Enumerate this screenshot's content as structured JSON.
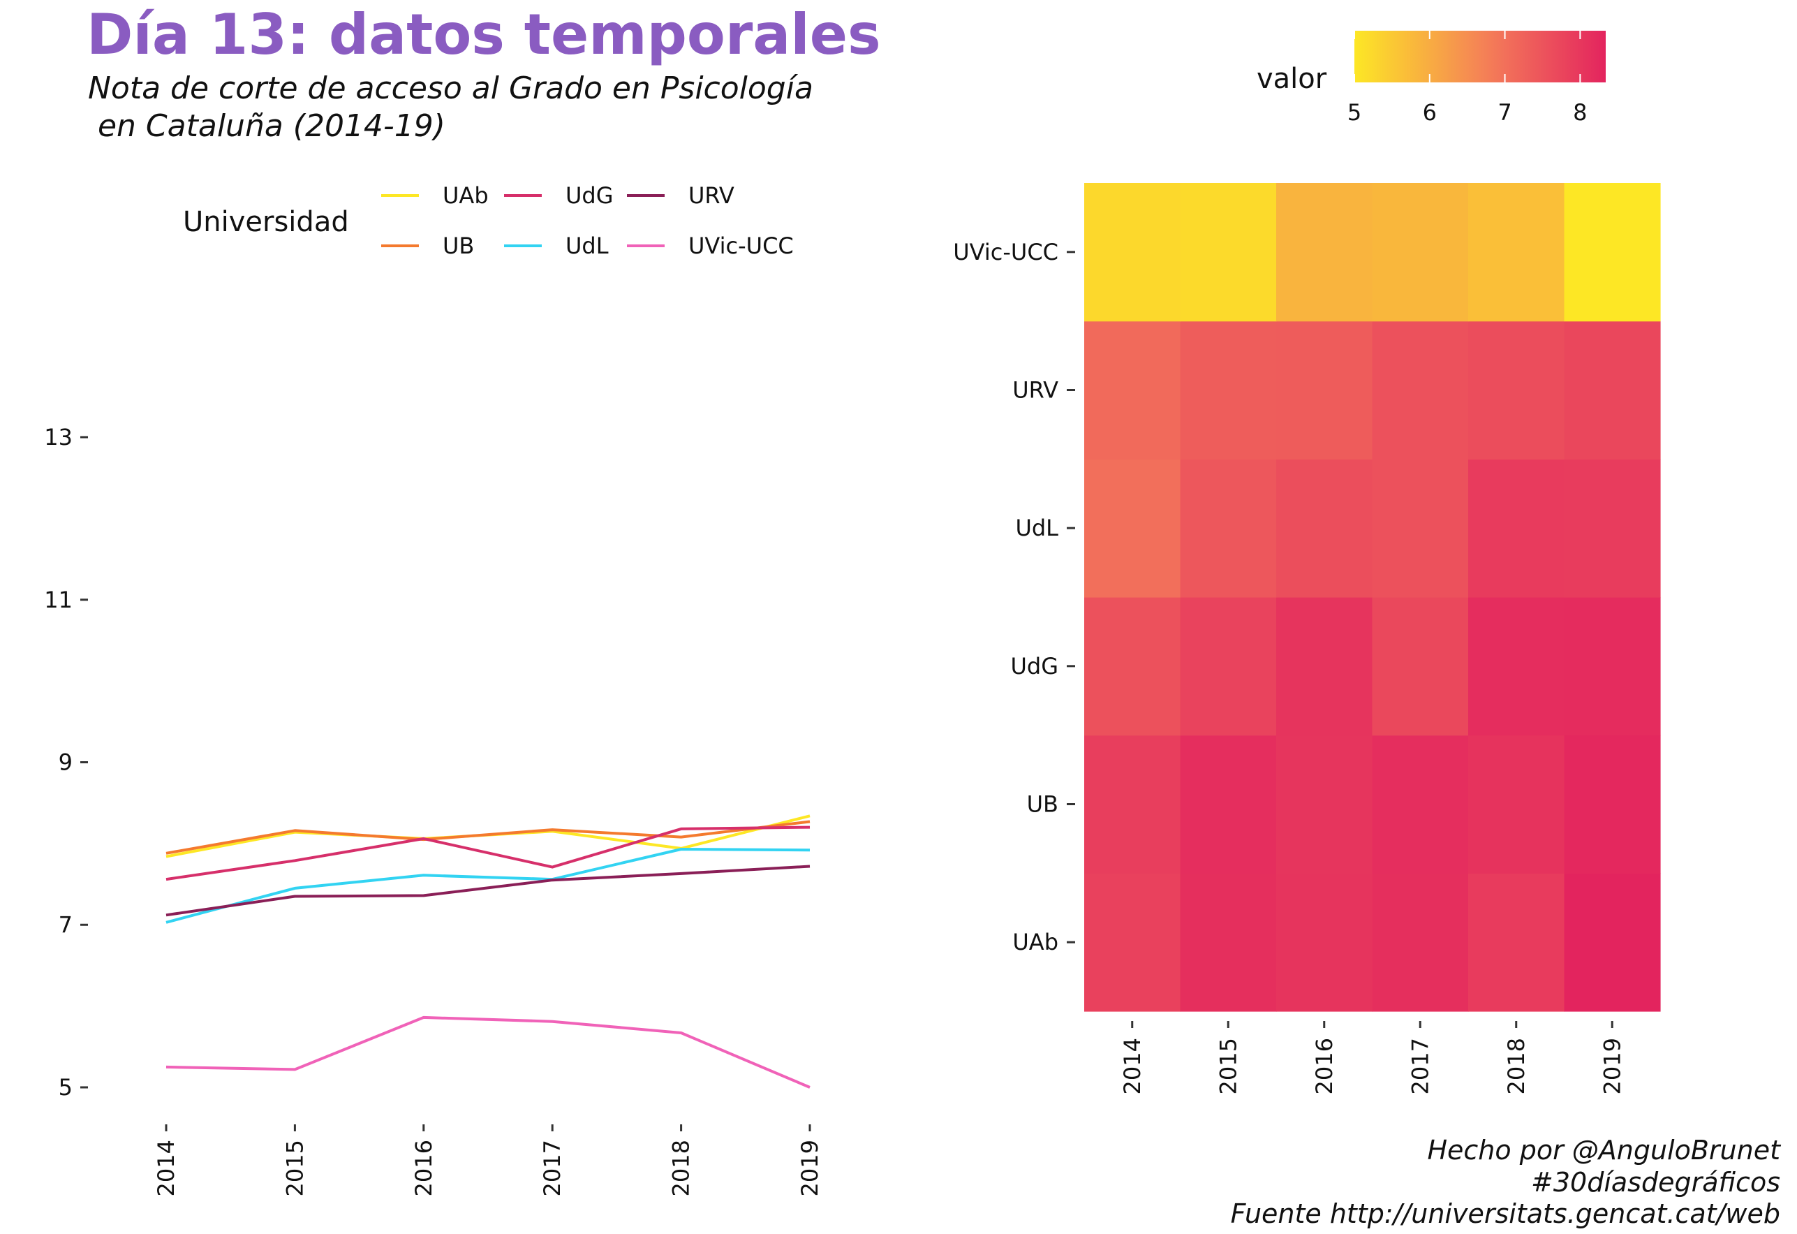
{
  "title": "Día 13: datos temporales",
  "subtitle": [
    "Nota de corte de acceso al Grado en Psicología",
    " en Cataluña (2014-19)"
  ],
  "caption": [
    "Hecho por @AnguloBrunet",
    "#30díasdegráficos",
    "Fuente http://universitats.gencat.cat/web"
  ],
  "colors": {
    "title": "#8A5CC1",
    "UAb": "#FDE725",
    "UB": "#F47A2E",
    "UdG": "#D62F6A",
    "UdL": "#32D3F2",
    "URV": "#8A1F57",
    "UVic-UCC": "#F062B8",
    "scale_low": "#FDE725",
    "scale_mid": "#F47A5A",
    "scale_high": "#E3245E"
  },
  "chart_data": [
    {
      "type": "line",
      "x": [
        "2014",
        "2015",
        "2016",
        "2017",
        "2018",
        "2019"
      ],
      "ylim": [
        4.6,
        14.7
      ],
      "yticks": [
        "5",
        "7",
        "9",
        "11",
        "13"
      ],
      "legend_title": "Universidad",
      "legend_position": "top",
      "grid": false,
      "series": [
        {
          "name": "UAb",
          "values": [
            7.84,
            8.14,
            8.06,
            8.15,
            7.94,
            8.34
          ]
        },
        {
          "name": "UB",
          "values": [
            7.88,
            8.16,
            8.05,
            8.17,
            8.08,
            8.27
          ]
        },
        {
          "name": "UdG",
          "values": [
            7.56,
            7.79,
            8.06,
            7.71,
            8.18,
            8.2
          ]
        },
        {
          "name": "UdL",
          "values": [
            7.03,
            7.45,
            7.61,
            7.56,
            7.93,
            7.92
          ]
        },
        {
          "name": "URV",
          "values": [
            7.12,
            7.35,
            7.36,
            7.55,
            7.63,
            7.72
          ]
        },
        {
          "name": "UVic-UCC",
          "values": [
            5.25,
            5.22,
            5.86,
            5.81,
            5.67,
            5.0
          ]
        }
      ]
    },
    {
      "type": "heatmap",
      "x": [
        "2014",
        "2015",
        "2016",
        "2017",
        "2018",
        "2019"
      ],
      "y": [
        "UAb",
        "UB",
        "UdG",
        "UdL",
        "URV",
        "UVic-UCC"
      ],
      "values": [
        [
          7.84,
          8.14,
          8.06,
          8.15,
          7.94,
          8.34
        ],
        [
          7.88,
          8.16,
          8.05,
          8.17,
          8.08,
          8.27
        ],
        [
          7.56,
          7.79,
          8.06,
          7.71,
          8.18,
          8.2
        ],
        [
          7.03,
          7.45,
          7.61,
          7.56,
          7.93,
          7.92
        ],
        [
          7.12,
          7.35,
          7.36,
          7.55,
          7.63,
          7.72
        ],
        [
          5.25,
          5.22,
          5.86,
          5.81,
          5.67,
          5.0
        ]
      ],
      "legend_title": "valor",
      "legend_ticks": [
        "5",
        "6",
        "7",
        "8"
      ],
      "legend_position": "top",
      "scale_range": [
        5.0,
        8.34
      ]
    }
  ]
}
